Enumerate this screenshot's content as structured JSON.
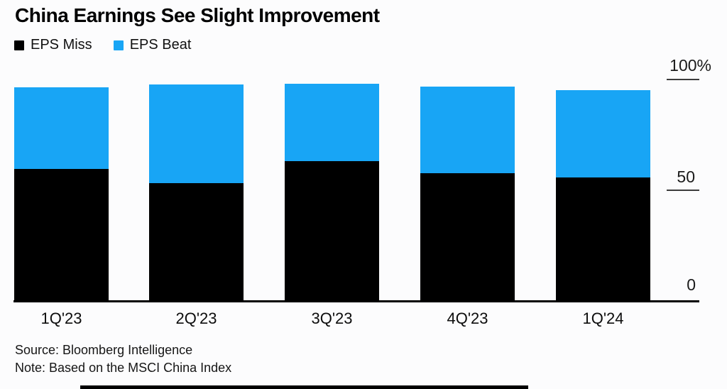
{
  "title": "China Earnings See Slight Improvement",
  "legend": [
    {
      "label": "EPS Miss",
      "color": "#000000"
    },
    {
      "label": "EPS Beat",
      "color": "#18a5f5"
    }
  ],
  "footnotes": {
    "source": "Source: Bloomberg Intelligence",
    "note": "Note: Based on the MSCI China Index"
  },
  "colors": {
    "miss": "#000000",
    "beat": "#18a5f5",
    "background": "#fcfcfd",
    "axis": "#000000"
  },
  "chart_data": {
    "type": "bar",
    "stacked": true,
    "title": "China Earnings See Slight Improvement",
    "categories": [
      "1Q'23",
      "2Q'23",
      "3Q'23",
      "4Q'23",
      "1Q'24"
    ],
    "series": [
      {
        "name": "EPS Miss",
        "color": "#000000",
        "values": [
          60,
          53.5,
          63.5,
          58,
          56
        ]
      },
      {
        "name": "EPS Beat",
        "color": "#18a5f5",
        "values": [
          37,
          44.5,
          35,
          39,
          39.5
        ]
      }
    ],
    "xlabel": "",
    "ylabel": "",
    "ylim": [
      0,
      100
    ],
    "y_ticks": [
      "100%",
      "50",
      "0"
    ],
    "y_tick_values": [
      100,
      50,
      0
    ],
    "grid": false,
    "legend_position": "top-left"
  }
}
